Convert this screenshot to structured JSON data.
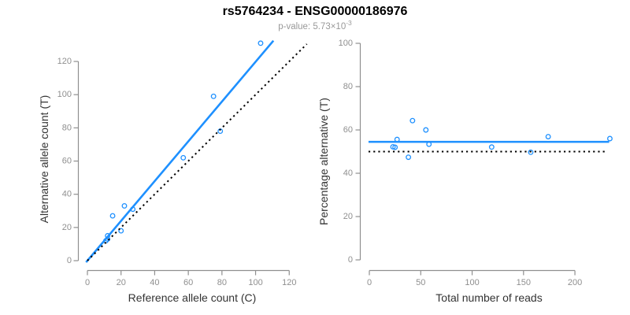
{
  "header": {
    "title": "rs5764234 - ENSG00000186976",
    "pvalue_label": "p-value: 5.73×10",
    "pvalue_exponent": "-3"
  },
  "colors": {
    "accent_blue": "#1E90FF",
    "dotted_black": "#000000",
    "axis_gray": "#8f8f8f",
    "tick_label_gray": "#8f8f8f",
    "axis_title_dark": "#333333",
    "background": "#ffffff"
  },
  "chart_data": [
    {
      "type": "scatter",
      "panel": "left",
      "xlabel": "Reference allele count (C)",
      "ylabel": "Alternative allele count (T)",
      "xticks": [
        0,
        20,
        40,
        60,
        80,
        100,
        120
      ],
      "yticks": [
        0,
        20,
        40,
        60,
        80,
        100,
        120
      ],
      "xlim": [
        -5.6,
        130.6
      ],
      "ylim": [
        -6.2,
        132.3
      ],
      "grid": false,
      "points": [
        {
          "x": 11,
          "y": 12
        },
        {
          "x": 12,
          "y": 13
        },
        {
          "x": 12,
          "y": 15
        },
        {
          "x": 15,
          "y": 27
        },
        {
          "x": 20,
          "y": 18
        },
        {
          "x": 22,
          "y": 33
        },
        {
          "x": 27,
          "y": 31
        },
        {
          "x": 57,
          "y": 62
        },
        {
          "x": 75,
          "y": 99
        },
        {
          "x": 79,
          "y": 78
        },
        {
          "x": 103,
          "y": 131
        }
      ],
      "lines": [
        {
          "name": "regression-line",
          "style": "solid",
          "color_role": "accent_blue",
          "slope": 1.198,
          "intercept": 0,
          "span": [
            -0.8,
            110.6
          ]
        },
        {
          "name": "identity-line",
          "style": "dotted",
          "color_role": "dotted_black",
          "slope": 1.0,
          "intercept": 0,
          "span": [
            0,
            130.5
          ]
        }
      ]
    },
    {
      "type": "scatter",
      "panel": "right",
      "xlabel": "Total number of reads",
      "ylabel": "Percentage alternative (T)",
      "xticks": [
        0,
        50,
        100,
        150,
        200
      ],
      "yticks": [
        0,
        20,
        40,
        60,
        80,
        100
      ],
      "xlim": [
        -0.8,
        242
      ],
      "ylim": [
        0,
        100
      ],
      "grid": false,
      "points": [
        {
          "x": 23,
          "y": 52.2
        },
        {
          "x": 25,
          "y": 52.0
        },
        {
          "x": 27,
          "y": 55.6
        },
        {
          "x": 38,
          "y": 47.4
        },
        {
          "x": 42,
          "y": 64.3
        },
        {
          "x": 55,
          "y": 60.0
        },
        {
          "x": 58,
          "y": 53.4
        },
        {
          "x": 119,
          "y": 52.1
        },
        {
          "x": 157,
          "y": 49.7
        },
        {
          "x": 174,
          "y": 56.9
        },
        {
          "x": 234,
          "y": 56.0
        }
      ],
      "lines": [
        {
          "name": "mean-percentage-line",
          "style": "solid",
          "color_role": "accent_blue",
          "const": 54.5,
          "span": [
            -0.8,
            233.3
          ]
        },
        {
          "name": "expected-50-line",
          "style": "dotted",
          "color_role": "dotted_black",
          "const": 50,
          "span": [
            -0.8,
            230.5
          ]
        }
      ]
    }
  ]
}
